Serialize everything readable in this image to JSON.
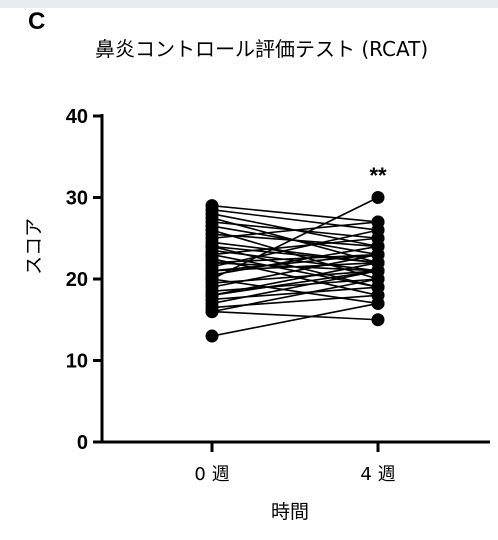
{
  "panel": {
    "letter": "C"
  },
  "chart_data": {
    "type": "line",
    "title": "鼻炎コントロール評価テスト (RCAT)",
    "xlabel": "時間",
    "ylabel": "スコア",
    "categories": [
      "0 週",
      "4 週"
    ],
    "ylim": [
      0,
      40
    ],
    "yticks": [
      0,
      10,
      20,
      30,
      40
    ],
    "grid": false,
    "legend": "none",
    "annotation": {
      "text": "**",
      "category": "4 週",
      "y": 33.5
    },
    "colors": {
      "line": "#000000",
      "marker": "#000000"
    },
    "pairs": [
      [
        29,
        27
      ],
      [
        28.5,
        26
      ],
      [
        28,
        24
      ],
      [
        27.5,
        22
      ],
      [
        27,
        25
      ],
      [
        26.5,
        23
      ],
      [
        26,
        20
      ],
      [
        25.5,
        24
      ],
      [
        25,
        27
      ],
      [
        24.5,
        22
      ],
      [
        24,
        19
      ],
      [
        23.5,
        21
      ],
      [
        23,
        25
      ],
      [
        22.5,
        18
      ],
      [
        22,
        23
      ],
      [
        21.5,
        26
      ],
      [
        21,
        22
      ],
      [
        20.5,
        24
      ],
      [
        20,
        17
      ],
      [
        19.5,
        21
      ],
      [
        19,
        23
      ],
      [
        18.5,
        20
      ],
      [
        18,
        22
      ],
      [
        17.5,
        19
      ],
      [
        17,
        21
      ],
      [
        16.5,
        18
      ],
      [
        16,
        20
      ],
      [
        16,
        15
      ],
      [
        13,
        17
      ],
      [
        20,
        30
      ],
      [
        22,
        21
      ],
      [
        24,
        22
      ],
      [
        18,
        21
      ],
      [
        21,
        23
      ],
      [
        23,
        19
      ]
    ]
  }
}
